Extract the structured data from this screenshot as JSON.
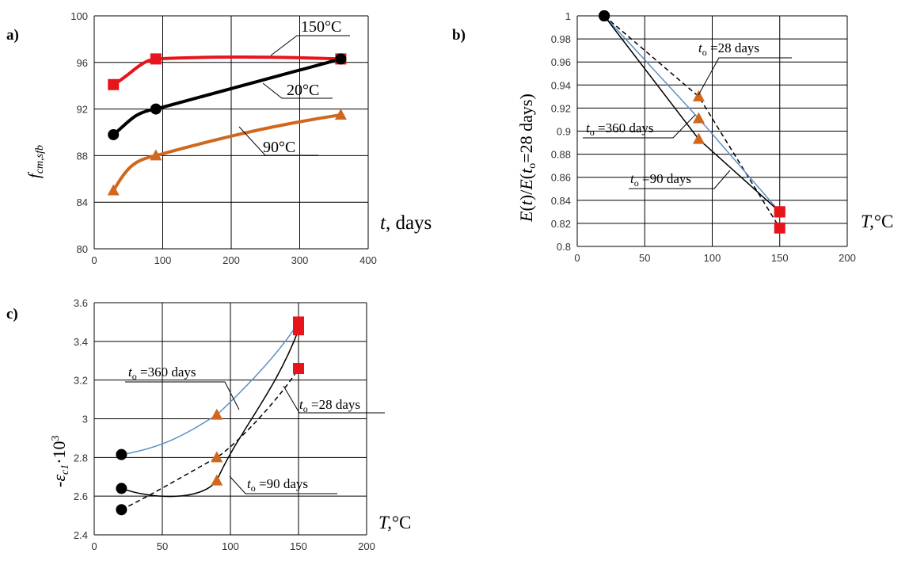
{
  "chart_data": [
    {
      "panel": "a)",
      "type": "line",
      "xlabel": "t, days",
      "ylabel": "f_cm,sfb",
      "xlim": [
        0,
        400
      ],
      "ylim": [
        80,
        100
      ],
      "xticks": [
        0,
        100,
        200,
        300,
        400
      ],
      "yticks": [
        80,
        84,
        88,
        92,
        96,
        100
      ],
      "grid": true,
      "series": [
        {
          "name": "150°C",
          "color": "#e8141b",
          "marker": "square",
          "points": [
            [
              28,
              94.1
            ],
            [
              90,
              96.3
            ],
            [
              360,
              96.3
            ]
          ]
        },
        {
          "name": "20°C",
          "color": "#000000",
          "marker": "circle",
          "points": [
            [
              28,
              89.8
            ],
            [
              90,
              92.0
            ],
            [
              360,
              96.3
            ]
          ]
        },
        {
          "name": "90°C",
          "color": "#d0671d",
          "marker": "triangle",
          "points": [
            [
              28,
              85.0
            ],
            [
              90,
              88.0
            ],
            [
              360,
              91.5
            ]
          ]
        }
      ]
    },
    {
      "panel": "b)",
      "type": "line",
      "xlabel": "T,°C",
      "ylabel": "E(t)/E(t_o=28 days)",
      "xlim": [
        0,
        200
      ],
      "ylim": [
        0.8,
        1.0
      ],
      "xticks": [
        0,
        50,
        100,
        150,
        200
      ],
      "yticks": [
        0.8,
        0.82,
        0.84,
        0.86,
        0.88,
        0.9,
        0.92,
        0.94,
        0.96,
        0.98,
        1
      ],
      "grid": true,
      "series": [
        {
          "name": "t_o =28 days",
          "style": "dashed",
          "color": "#000000",
          "points": [
            [
              20,
              1.0
            ],
            [
              90,
              0.93
            ],
            [
              150,
              0.816
            ]
          ]
        },
        {
          "name": "t_o =360 days",
          "style": "solid",
          "color": "#5b8fc7",
          "points": [
            [
              20,
              1.0
            ],
            [
              90,
              0.911
            ],
            [
              150,
              0.83
            ]
          ]
        },
        {
          "name": "t_o =90 days",
          "style": "solid",
          "color": "#000000",
          "points": [
            [
              20,
              1.0
            ],
            [
              90,
              0.893
            ],
            [
              150,
              0.83
            ]
          ]
        }
      ]
    },
    {
      "panel": "c)",
      "type": "line",
      "xlabel": "T,°C",
      "ylabel": "-ε_c1·10^3",
      "xlim": [
        0,
        200
      ],
      "ylim": [
        2.4,
        3.6
      ],
      "xticks": [
        0,
        50,
        100,
        150,
        200
      ],
      "yticks": [
        2.4,
        2.6,
        2.8,
        3,
        3.2,
        3.4,
        3.6
      ],
      "grid": true,
      "series": [
        {
          "name": "t_o =360 days",
          "style": "solid",
          "color": "#5b8fc7",
          "points": [
            [
              20,
              2.815
            ],
            [
              90,
              3.02
            ],
            [
              150,
              3.5
            ]
          ]
        },
        {
          "name": "t_o =28 days",
          "style": "dashed",
          "color": "#000000",
          "points": [
            [
              20,
              2.53
            ],
            [
              90,
              2.8
            ],
            [
              150,
              3.26
            ]
          ]
        },
        {
          "name": "t_o =90 days",
          "style": "solid",
          "color": "#000000",
          "points": [
            [
              20,
              2.64
            ],
            [
              90,
              2.68
            ],
            [
              150,
              3.46
            ]
          ]
        }
      ]
    }
  ],
  "labels": {
    "a": {
      "panel": "a)",
      "ylabel_main": "f",
      "ylabel_sub": "cm,sfb",
      "xlabel_var": "t",
      "xlabel_rest": ", days",
      "ann_150": "150°C",
      "ann_20": "20°C",
      "ann_90": "90°C"
    },
    "b": {
      "panel": "b)",
      "ylabel_1": "E",
      "ylabel_2": "(",
      "ylabel_3": "t",
      "ylabel_4": ")/",
      "ylabel_5": "E",
      "ylabel_6": "(",
      "ylabel_7": "t",
      "ylabel_8": "o",
      "ylabel_9": "=28 days)",
      "xlabel_var": "T,",
      "xlabel_unit": "°C",
      "ann28_t": "t",
      "ann28_o": "o",
      "ann28_rest": " =28 days",
      "ann360_t": "t",
      "ann360_o": "o",
      "ann360_rest": " =360 days",
      "ann90_t": "t",
      "ann90_o": "o",
      "ann90_rest": " =90 days"
    },
    "c": {
      "panel": "c)",
      "ylabel_minus": "-",
      "ylabel_eps": "ε",
      "ylabel_sub": "c1",
      "ylabel_dot": "·10",
      "ylabel_sup": "3",
      "xlabel_var": "T,",
      "xlabel_unit": "°C",
      "ann360_t": "t",
      "ann360_o": "o",
      "ann360_rest": " =360 days",
      "ann28_t": "t",
      "ann28_o": "o",
      "ann28_rest": " =28 days",
      "ann90_t": "t",
      "ann90_o": "o",
      "ann90_rest": " =90 days"
    }
  }
}
